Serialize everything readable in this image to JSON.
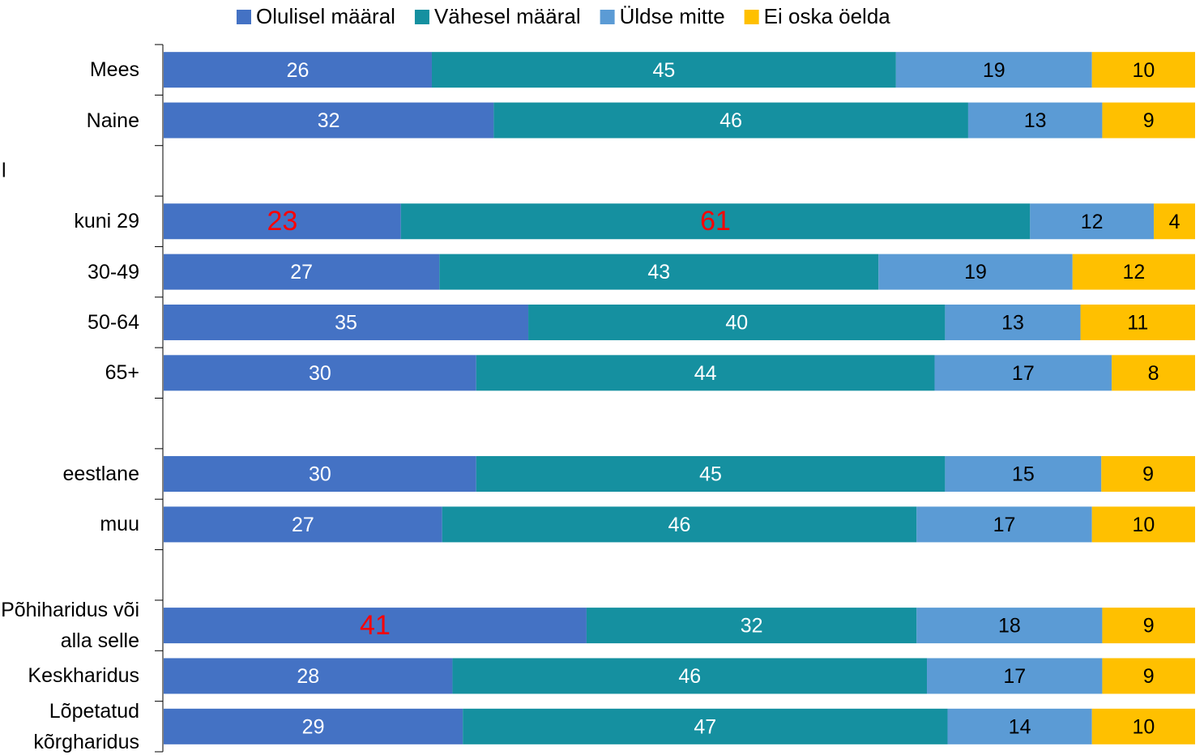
{
  "chart_data": {
    "type": "bar",
    "orientation": "horizontal",
    "stacked": "percent",
    "annotation": "l",
    "categories": [
      "Mees",
      "Naine",
      null,
      "kuni 29",
      "30-49",
      "50-64",
      "65+",
      null,
      "eestlane",
      "muu",
      null,
      "Põhiharidus või alla selle",
      "Keskharidus",
      "Lõpetatud kõrgharidus"
    ],
    "series": [
      {
        "name": "Olulisel määral",
        "color": "#4472c4",
        "label_color": "#ffffff",
        "values": [
          26,
          32,
          null,
          23,
          27,
          35,
          30,
          null,
          30,
          27,
          null,
          41,
          28,
          29
        ]
      },
      {
        "name": "Vähesel määral",
        "color": "#1590a0",
        "label_color": "#ffffff",
        "values": [
          45,
          46,
          null,
          61,
          43,
          40,
          44,
          null,
          45,
          46,
          null,
          32,
          46,
          47
        ]
      },
      {
        "name": "Üldse mitte",
        "color": "#5b9bd5",
        "label_color": "#000000",
        "values": [
          19,
          13,
          null,
          12,
          19,
          13,
          17,
          null,
          15,
          17,
          null,
          18,
          17,
          14
        ]
      },
      {
        "name": "Ei oska öelda",
        "color": "#ffc000",
        "label_color": "#000000",
        "values": [
          10,
          9,
          null,
          4,
          12,
          11,
          8,
          null,
          9,
          10,
          null,
          9,
          9,
          10
        ]
      }
    ],
    "highlight": {
      "color": "#ff0000",
      "points": [
        [
          0,
          3
        ],
        [
          1,
          3
        ],
        [
          0,
          11
        ]
      ]
    },
    "legend": "top"
  }
}
